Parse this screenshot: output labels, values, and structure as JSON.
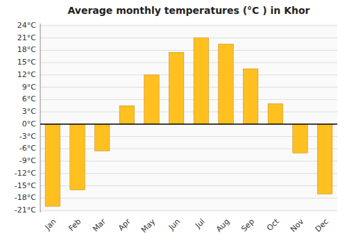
{
  "chart_data": {
    "type": "bar",
    "title": "Average monthly temperatures (°C ) in Khor",
    "categories": [
      "Jan",
      "Feb",
      "Mar",
      "Apr",
      "May",
      "Jun",
      "Jul",
      "Aug",
      "Sep",
      "Oct",
      "Nov",
      "Dec"
    ],
    "values": [
      -20,
      -16,
      -6.5,
      4.5,
      12,
      17.5,
      21,
      19.5,
      13.5,
      5,
      -7,
      -17
    ],
    "color": "#FFC020",
    "ylim": [
      -21.5,
      24.5
    ],
    "yticks": [
      {
        "value": -21,
        "label": "-21°C"
      },
      {
        "value": -18,
        "label": "-18°C"
      },
      {
        "value": -15,
        "label": "-15°C"
      },
      {
        "value": -12,
        "label": "-12°C"
      },
      {
        "value": -9,
        "label": "-9°C"
      },
      {
        "value": -6,
        "label": "-6°C"
      },
      {
        "value": -3,
        "label": "-3°C"
      },
      {
        "value": 0,
        "label": "0°C"
      },
      {
        "value": 3,
        "label": "3°C"
      },
      {
        "value": 6,
        "label": "6°C"
      },
      {
        "value": 9,
        "label": "9°C"
      },
      {
        "value": 12,
        "label": "12°C"
      },
      {
        "value": 15,
        "label": "15°C"
      },
      {
        "value": 18,
        "label": "18°C"
      },
      {
        "value": 21,
        "label": "21°C"
      },
      {
        "value": 24,
        "label": "24°C"
      }
    ],
    "grid": true
  }
}
